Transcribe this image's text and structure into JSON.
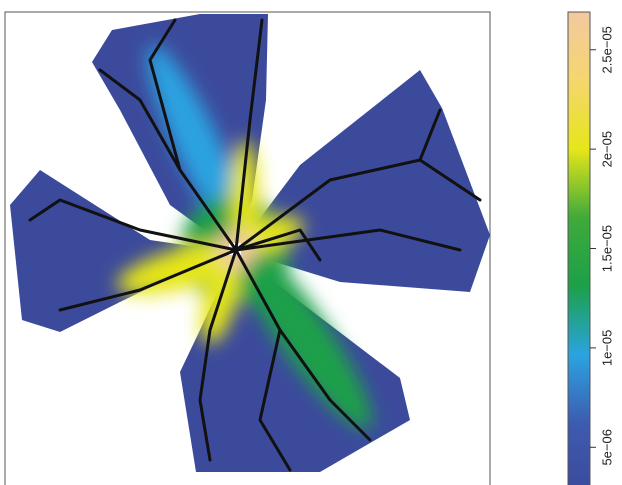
{
  "chart_data": {
    "type": "heatmap",
    "colorbar": {
      "lim": [
        2.75e-06,
        2.69e-05
      ],
      "colors": [
        "#3c4a9c",
        "#3d5bb0",
        "#2ba3e0",
        "#1ca04a",
        "#3faa3a",
        "#e6e619",
        "#f5d66e",
        "#f2c9a0"
      ],
      "ticks": [
        {
          "value": 5e-06,
          "label": "5e−06"
        },
        {
          "value": 1e-05,
          "label": "1e−05"
        },
        {
          "value": 1.5e-05,
          "label": "1.5e−05"
        },
        {
          "value": 2e-05,
          "label": "2e−05"
        },
        {
          "value": 2.5e-05,
          "label": "2.5e−05"
        }
      ]
    }
  }
}
